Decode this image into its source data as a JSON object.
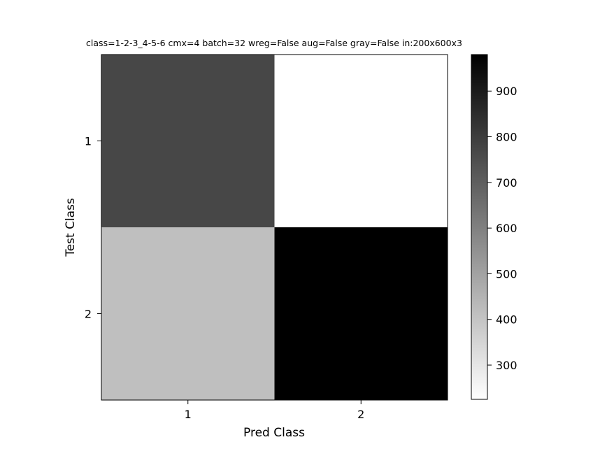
{
  "chart_data": {
    "type": "heatmap",
    "title": "class=1-2-3_4-5-6 cmx=4 batch=32 wreg=False aug=False gray=False in:200x600x3",
    "xlabel": "Pred Class",
    "ylabel": "Test Class",
    "x_categories": [
      "1",
      "2"
    ],
    "y_categories": [
      "1",
      "2"
    ],
    "values": [
      [
        770,
        225
      ],
      [
        415,
        980
      ]
    ],
    "colormap": "gray_r",
    "colorbar": {
      "min": 225,
      "max": 980,
      "ticks": [
        300,
        400,
        500,
        600,
        700,
        800,
        900
      ],
      "tick_labels": [
        "300",
        "400",
        "500",
        "600",
        "700",
        "800",
        "900"
      ]
    },
    "grid": false,
    "legend": "none"
  }
}
